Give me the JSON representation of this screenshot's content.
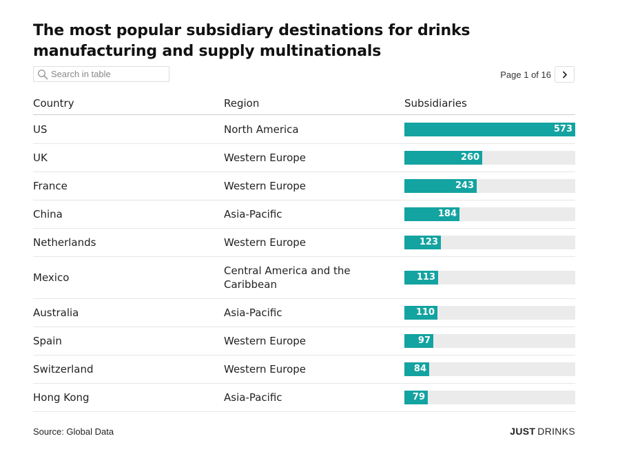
{
  "title": "The most popular subsidiary destinations for drinks manufacturing and supply multinationals",
  "search": {
    "placeholder": "Search in table",
    "icon": "search-icon"
  },
  "pagination": {
    "label": "Page 1 of 16",
    "next_icon": "chevron-right-icon"
  },
  "columns": {
    "country": "Country",
    "region": "Region",
    "subsidiaries": "Subsidiaries"
  },
  "colors": {
    "bar": "#13a3a1",
    "track": "#ebebeb"
  },
  "chart_data": {
    "type": "table",
    "title": "The most popular subsidiary destinations for drinks manufacturing and supply multinationals",
    "columns": [
      "Country",
      "Region",
      "Subsidiaries"
    ],
    "xlim": [
      0,
      573
    ],
    "rows": [
      {
        "country": "US",
        "region": "North America",
        "value": 573
      },
      {
        "country": "UK",
        "region": "Western Europe",
        "value": 260
      },
      {
        "country": "France",
        "region": "Western Europe",
        "value": 243
      },
      {
        "country": "China",
        "region": "Asia-Pacific",
        "value": 184
      },
      {
        "country": "Netherlands",
        "region": "Western Europe",
        "value": 123
      },
      {
        "country": "Mexico",
        "region": "Central America and the Caribbean",
        "value": 113
      },
      {
        "country": "Australia",
        "region": "Asia-Pacific",
        "value": 110
      },
      {
        "country": "Spain",
        "region": "Western Europe",
        "value": 97
      },
      {
        "country": "Switzerland",
        "region": "Western Europe",
        "value": 84
      },
      {
        "country": "Hong Kong",
        "region": "Asia-Pacific",
        "value": 79
      }
    ]
  },
  "footer": {
    "source": "Source: Global Data",
    "brand_part1": "JUST",
    "brand_part2": "DRINKS"
  }
}
